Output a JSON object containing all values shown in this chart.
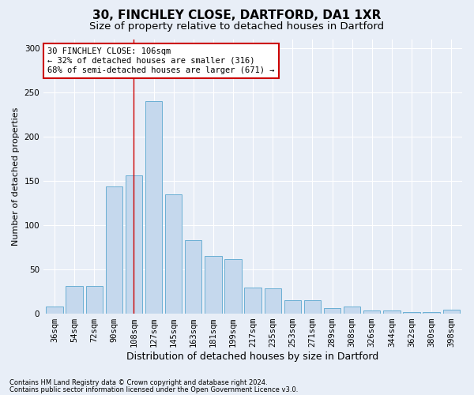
{
  "title1": "30, FINCHLEY CLOSE, DARTFORD, DA1 1XR",
  "title2": "Size of property relative to detached houses in Dartford",
  "xlabel": "Distribution of detached houses by size in Dartford",
  "ylabel": "Number of detached properties",
  "categories": [
    "36sqm",
    "54sqm",
    "72sqm",
    "90sqm",
    "108sqm",
    "127sqm",
    "145sqm",
    "163sqm",
    "181sqm",
    "199sqm",
    "217sqm",
    "235sqm",
    "253sqm",
    "271sqm",
    "289sqm",
    "308sqm",
    "326sqm",
    "344sqm",
    "362sqm",
    "380sqm",
    "398sqm"
  ],
  "values": [
    8,
    31,
    31,
    144,
    156,
    240,
    135,
    83,
    65,
    61,
    29,
    28,
    15,
    15,
    6,
    8,
    3,
    3,
    1,
    1,
    4
  ],
  "bar_color": "#c5d8ed",
  "bar_edge_color": "#6aafd4",
  "vline_x_index": 4,
  "vline_color": "#cc0000",
  "annotation_text": "30 FINCHLEY CLOSE: 106sqm\n← 32% of detached houses are smaller (316)\n68% of semi-detached houses are larger (671) →",
  "annotation_box_facecolor": "#ffffff",
  "annotation_box_edgecolor": "#cc0000",
  "background_color": "#e8eef7",
  "grid_color": "#ffffff",
  "footnote1": "Contains HM Land Registry data © Crown copyright and database right 2024.",
  "footnote2": "Contains public sector information licensed under the Open Government Licence v3.0.",
  "ylim": [
    0,
    310
  ],
  "yticks": [
    0,
    50,
    100,
    150,
    200,
    250,
    300
  ],
  "title1_fontsize": 11,
  "title2_fontsize": 9.5,
  "xlabel_fontsize": 9,
  "ylabel_fontsize": 8,
  "tick_fontsize": 7.5,
  "annotation_fontsize": 7.5,
  "footnote_fontsize": 6
}
